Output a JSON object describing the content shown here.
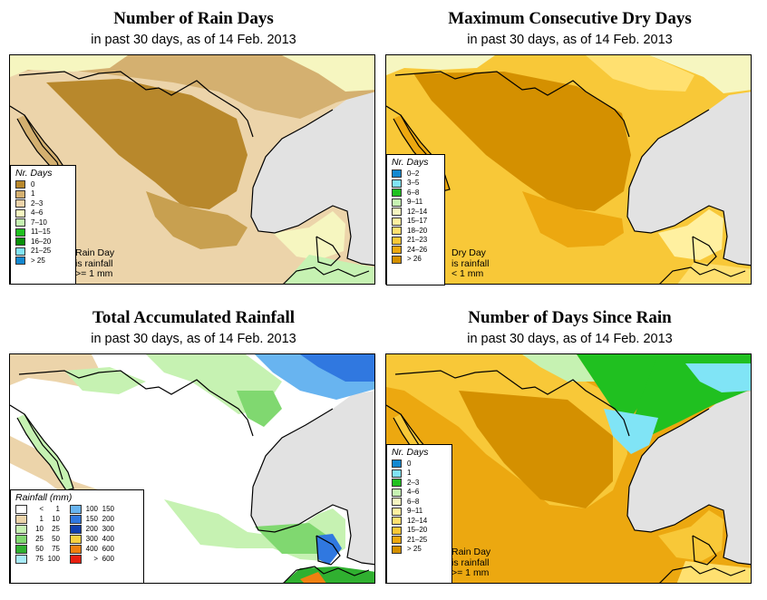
{
  "panels": [
    {
      "title": "Number of Rain Days",
      "subtitle": "in past 30 days, as of  14 Feb. 2013",
      "legend_title": "Nr. Days",
      "legend": [
        {
          "label": "0",
          "color": "#b8882c"
        },
        {
          "label": "1",
          "color": "#d4b070"
        },
        {
          "label": "2–3",
          "color": "#ecd4aa"
        },
        {
          "label": "4–6",
          "color": "#f6f6c0"
        },
        {
          "label": "7–10",
          "color": "#c6f2b2"
        },
        {
          "label": "11–15",
          "color": "#20c020"
        },
        {
          "label": "16–20",
          "color": "#0a900a"
        },
        {
          "label": "21–25",
          "color": "#80e4f6"
        },
        {
          "label": "> 25",
          "color": "#1488d0"
        }
      ],
      "note": [
        "Rain Day",
        "is rainfall",
        ">= 1 mm"
      ]
    },
    {
      "title": "Maximum Consecutive Dry Days",
      "subtitle": "in past 30 days, as of  14 Feb. 2013",
      "legend_title": "Nr. Days",
      "legend": [
        {
          "label": "0–2",
          "color": "#1488d0"
        },
        {
          "label": "3–5",
          "color": "#80e4f6"
        },
        {
          "label": "6–8",
          "color": "#20c020"
        },
        {
          "label": "9–11",
          "color": "#c6f2b2"
        },
        {
          "label": "12–14",
          "color": "#f6f6c0"
        },
        {
          "label": "15–17",
          "color": "#fff0a0"
        },
        {
          "label": "18–20",
          "color": "#ffe070"
        },
        {
          "label": "21–23",
          "color": "#f8c838"
        },
        {
          "label": "24–26",
          "color": "#eca810"
        },
        {
          "label": "> 26",
          "color": "#d49000"
        }
      ],
      "note": [
        "Dry Day",
        "is rainfall",
        "< 1 mm"
      ]
    },
    {
      "title": "Total Accumulated Rainfall",
      "subtitle": "in past 30 days, as of  14 Feb. 2013",
      "legend_title": "Rainfall (mm)",
      "legend_left": [
        {
          "lo": "<",
          "hi": "1",
          "color": "#ffffff"
        },
        {
          "lo": "1",
          "hi": "10",
          "color": "#ecd4aa"
        },
        {
          "lo": "10",
          "hi": "25",
          "color": "#c6f2b2"
        },
        {
          "lo": "25",
          "hi": "50",
          "color": "#80d870"
        },
        {
          "lo": "50",
          "hi": "75",
          "color": "#30b030"
        },
        {
          "lo": "75",
          "hi": "100",
          "color": "#a8ecf8"
        }
      ],
      "legend_right": [
        {
          "lo": "100",
          "hi": "150",
          "color": "#68b4f0"
        },
        {
          "lo": "150",
          "hi": "200",
          "color": "#3078e0"
        },
        {
          "lo": "200",
          "hi": "300",
          "color": "#1040b0"
        },
        {
          "lo": "300",
          "hi": "400",
          "color": "#f8d040"
        },
        {
          "lo": "400",
          "hi": "600",
          "color": "#f08010"
        },
        {
          "lo": ">",
          "hi": "600",
          "color": "#e82010"
        }
      ]
    },
    {
      "title": "Number of Days Since Rain",
      "subtitle": "in past 30 days, as of  14 Feb. 2013",
      "legend_title": "Nr. Days",
      "legend": [
        {
          "label": "0",
          "color": "#1488d0"
        },
        {
          "label": "1",
          "color": "#80e4f6"
        },
        {
          "label": "2–3",
          "color": "#20c020"
        },
        {
          "label": "4–6",
          "color": "#c6f2b2"
        },
        {
          "label": "6–8",
          "color": "#f6f6c0"
        },
        {
          "label": "9–11",
          "color": "#fff0a0"
        },
        {
          "label": "12–14",
          "color": "#ffe070"
        },
        {
          "label": "15–20",
          "color": "#f8c838"
        },
        {
          "label": "21–25",
          "color": "#eca810"
        },
        {
          "label": "> 25",
          "color": "#d49000"
        }
      ],
      "note": [
        "Rain Day",
        "is rainfall",
        ">= 1 mm"
      ]
    }
  ],
  "colors": {
    "ocean": "#e2e2e2",
    "border": "#000000"
  }
}
